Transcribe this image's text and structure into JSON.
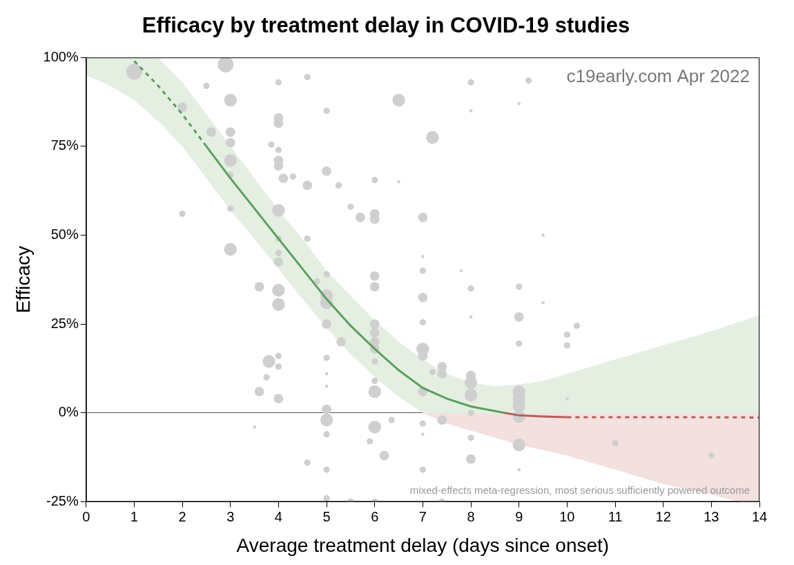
{
  "chart_data": {
    "type": "scatter",
    "title": "Efficacy by treatment delay in COVID-19 studies",
    "x_label": "Average treatment delay (days since onset)",
    "y_label": "Efficacy",
    "annotations": [
      "c19early.com Apr 2022",
      "mixed-effects meta-regression, most serious sufficiently powered outcome"
    ],
    "xlim": [
      0,
      14
    ],
    "xticks": [
      0,
      1,
      2,
      3,
      4,
      5,
      6,
      7,
      8,
      9,
      10,
      11,
      12,
      13,
      14
    ],
    "ylim": [
      -25,
      100
    ],
    "yticks": [
      {
        "value": -25,
        "label": "-25%"
      },
      {
        "value": 0,
        "label": "0%"
      },
      {
        "value": 25,
        "label": "25%"
      },
      {
        "value": 50,
        "label": "50%"
      },
      {
        "value": 75,
        "label": "75%"
      },
      {
        "value": 100,
        "label": "100%"
      }
    ],
    "grid": false,
    "legend": false,
    "series": [
      {
        "type": "band",
        "colors": [
          "#e4efe2",
          "#f3e1df"
        ],
        "x": [
          0,
          0.5,
          1,
          1.5,
          2,
          2.5,
          3,
          3.5,
          4,
          4.5,
          5,
          5.5,
          6,
          6.5,
          7,
          7.5,
          8,
          8.5,
          9,
          9.5,
          10,
          11,
          12,
          13,
          14
        ],
        "lower": [
          95,
          92,
          88,
          82,
          75,
          66,
          57,
          49,
          40.5,
          32,
          24,
          16.5,
          10,
          4.5,
          0,
          -3,
          -5,
          -7,
          -9,
          -10.5,
          -12,
          -16,
          -20,
          -23,
          -26.5
        ],
        "upper": [
          112,
          108,
          104,
          100,
          93,
          84,
          75,
          66,
          57,
          49,
          40,
          33,
          26,
          20,
          15,
          11,
          8.5,
          7.5,
          8,
          9,
          11,
          15,
          19,
          23,
          27.5
        ]
      },
      {
        "type": "bubble",
        "color": "#cfcfcf",
        "x": [
          1,
          2,
          2,
          2.5,
          2.6,
          2.9,
          3,
          3,
          3,
          3,
          3,
          3,
          3,
          3.5,
          3.6,
          3.6,
          3.75,
          3.8,
          3.85,
          4,
          4,
          4,
          4,
          4,
          4,
          4,
          4,
          4,
          4,
          4,
          4,
          4,
          4,
          4,
          4.1,
          4.3,
          4.6,
          4.6,
          4.6,
          4.6,
          4.8,
          5,
          5,
          5,
          5,
          5,
          5,
          5,
          5,
          5,
          5,
          5,
          5,
          5,
          5,
          5.25,
          5.3,
          5.5,
          5.7,
          5.9,
          6,
          6,
          6,
          6,
          6,
          6,
          6,
          6,
          6,
          6,
          6,
          6,
          6,
          6.2,
          6.35,
          6.5,
          6.5,
          7,
          7,
          7,
          7,
          7,
          7,
          7,
          7,
          7,
          7,
          7,
          7.2,
          7.2,
          7.4,
          7.4,
          7.4,
          7.8,
          8,
          8,
          8,
          8,
          8,
          8,
          8,
          8,
          8,
          8,
          9,
          9,
          9,
          9,
          9,
          9,
          9,
          9,
          9,
          9,
          9.2,
          9.5,
          9.5,
          10,
          10,
          10,
          10.2,
          11,
          13,
          5.5,
          6,
          7.4
        ],
        "values": [
          96,
          86,
          56,
          92,
          79,
          98,
          88,
          79,
          76,
          71,
          67,
          57.5,
          46,
          -4,
          35.5,
          6,
          10,
          14.5,
          75.5,
          93,
          83,
          81.5,
          74,
          71,
          69.5,
          57,
          49,
          45,
          42.5,
          34.5,
          30.5,
          16,
          13,
          4,
          66,
          66.5,
          94.5,
          64,
          49,
          -14,
          37,
          85,
          68,
          39,
          33,
          31,
          25,
          15.5,
          11,
          7.5,
          1,
          -2,
          -6,
          -16,
          -24,
          64,
          20,
          58,
          55,
          -8,
          65.5,
          56,
          54.5,
          38.5,
          35.5,
          25,
          22.5,
          20,
          18,
          14.5,
          9,
          6,
          -4,
          -12,
          -2,
          65,
          88,
          55,
          44,
          40,
          32.5,
          25.5,
          18,
          16,
          6,
          -3,
          -6,
          -16,
          77.5,
          11.5,
          13,
          11,
          -2,
          40,
          93,
          85,
          35,
          27,
          10.5,
          8.5,
          5,
          0,
          -7,
          -13,
          87,
          35.5,
          27,
          19.5,
          6,
          4,
          2,
          -1,
          -9,
          -16,
          93.5,
          50,
          31,
          22,
          19,
          4,
          24.5,
          -8.5,
          -12,
          -25,
          -25,
          -25
        ],
        "sizes": [
          5,
          3,
          2,
          2,
          3,
          5,
          4,
          3,
          3,
          4,
          2,
          2,
          4,
          1,
          3,
          3,
          2,
          4,
          2,
          2,
          3,
          3,
          2,
          3,
          3,
          4,
          2,
          2,
          3,
          4,
          4,
          2,
          2,
          3,
          3,
          2,
          2,
          3,
          2,
          2,
          2,
          2,
          3,
          2,
          4,
          4,
          3,
          2,
          1,
          1,
          3,
          4,
          2,
          2,
          2,
          2,
          3,
          2,
          3,
          2,
          2,
          3,
          3,
          3,
          3,
          3,
          3,
          3,
          3,
          2,
          2,
          4,
          4,
          3,
          2,
          1,
          4,
          3,
          1,
          2,
          3,
          2,
          4,
          3,
          3,
          2,
          1,
          2,
          4,
          2,
          3,
          3,
          3,
          1,
          2,
          1,
          2,
          1,
          3,
          4,
          4,
          2,
          2,
          3,
          1,
          2,
          3,
          2,
          4,
          4,
          4,
          4,
          4,
          1,
          2,
          1,
          1,
          2,
          2,
          1,
          2,
          2,
          2,
          2,
          2,
          2
        ]
      },
      {
        "type": "line",
        "color": "#5a9f5a",
        "line_style": "dashed",
        "x": [
          1,
          1.5,
          2,
          2.5
        ],
        "values": [
          99,
          92,
          84,
          75
        ]
      },
      {
        "type": "line",
        "color": "#5a9f5a",
        "line_style": "solid",
        "x": [
          2.5,
          3,
          3.5,
          4,
          4.5,
          5,
          5.5,
          6,
          6.5,
          7,
          7.5,
          8,
          8.7
        ],
        "values": [
          75,
          66,
          57.5,
          49,
          40.5,
          32,
          24.5,
          18,
          12,
          7,
          4,
          1.8,
          0
        ]
      },
      {
        "type": "line",
        "color": "#b35f5b",
        "line_style": "solid",
        "x": [
          8.7,
          9,
          9.5,
          10
        ],
        "values": [
          0,
          -0.7,
          -1,
          -1.2
        ]
      },
      {
        "type": "line",
        "color": "#b35f5b",
        "line_style": "dashed",
        "x": [
          10,
          12,
          14
        ],
        "values": [
          -1.2,
          -1.2,
          -1.3
        ]
      }
    ]
  }
}
